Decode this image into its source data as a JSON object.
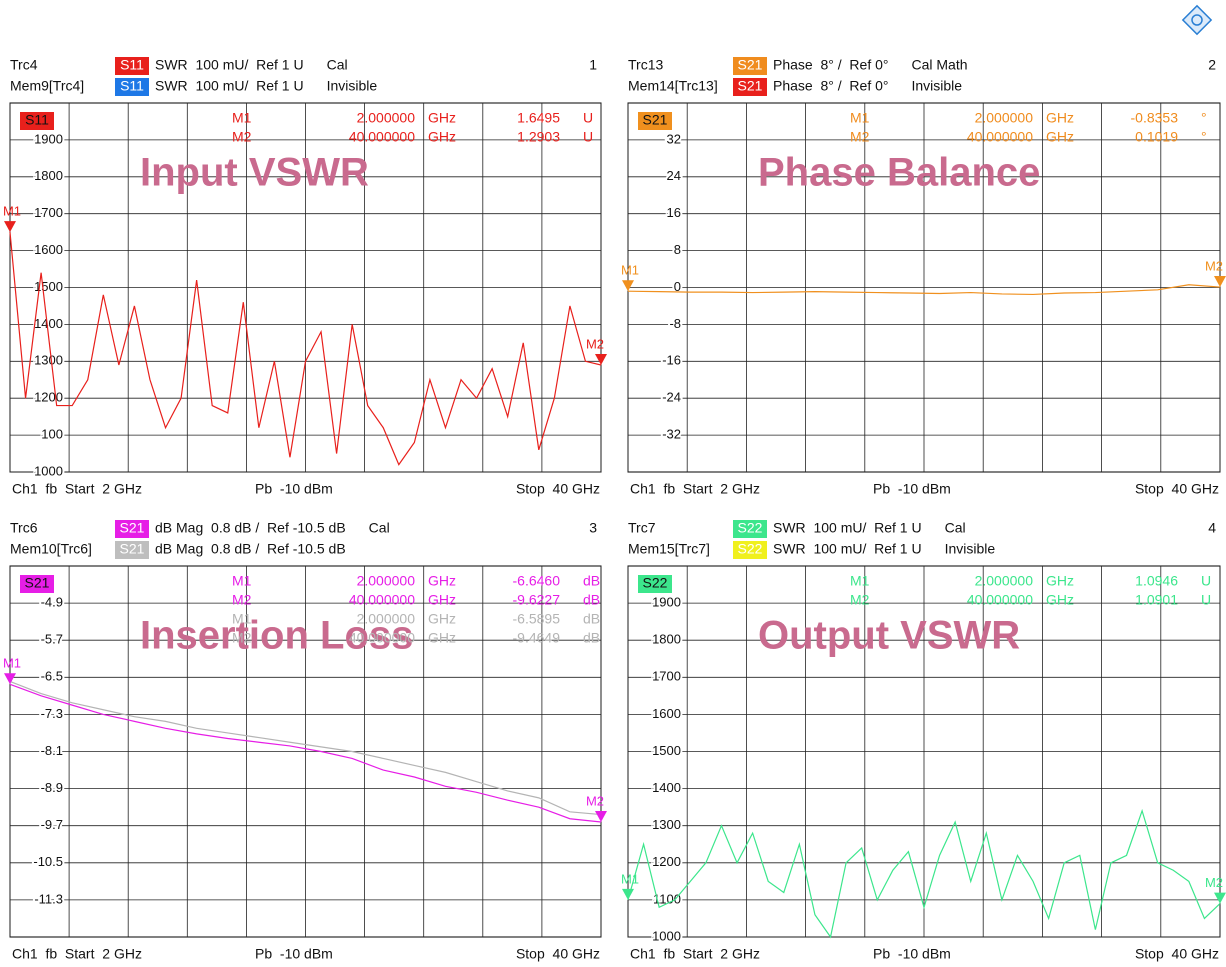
{
  "chart_data": [
    {
      "type": "line",
      "title": "Input VSWR",
      "header": [
        {
          "trace": "Trc4",
          "badge": "S11",
          "badge_color": "#e8201c",
          "format": "SWR  100 mU/  Ref 1 U",
          "status": "Cal",
          "number": "1"
        },
        {
          "trace": "Mem9[Trc4]",
          "badge": "S11",
          "badge_color": "#1e78e6",
          "format": "SWR  100 mU/  Ref 1 U",
          "status": "Invisible"
        }
      ],
      "markers": [
        {
          "name": "M1",
          "stimulus": "2.000000",
          "unit": "GHz",
          "response": "1.6495",
          "response_unit": "U",
          "color": "#e8201c"
        },
        {
          "name": "M2",
          "stimulus": "40.000000",
          "unit": "GHz",
          "response": "1.2903",
          "response_unit": "U",
          "color": "#e8201c"
        }
      ],
      "footer": {
        "start": "Ch1  fb  Start  2 GHz",
        "power": "Pb  -10 dBm",
        "stop": "Stop  40 GHz"
      },
      "x": [
        2,
        3,
        4,
        5,
        6,
        7,
        8,
        9,
        10,
        11,
        12,
        13,
        14,
        15,
        16,
        17,
        18,
        19,
        20,
        21,
        22,
        23,
        24,
        25,
        26,
        27,
        28,
        29,
        30,
        31,
        32,
        33,
        34,
        35,
        36,
        37,
        38,
        39,
        40
      ],
      "xlim": [
        2,
        40
      ],
      "xticks": [
        2,
        5.8,
        9.6,
        13.4,
        17.2,
        21,
        24.8,
        28.6,
        32.4,
        36.2,
        40
      ],
      "ylim": [
        1000,
        2000
      ],
      "yticks": [
        1000,
        {
          "value": 1100,
          "label": "100"
        },
        1200,
        1300,
        1400,
        1500,
        1600,
        1700,
        1800,
        1900
      ],
      "series": [
        {
          "name": "S11",
          "color": "#e8201c",
          "values": [
            1650,
            1200,
            1540,
            1180,
            1180,
            1250,
            1480,
            1290,
            1450,
            1250,
            1120,
            1200,
            1520,
            1180,
            1160,
            1460,
            1120,
            1300,
            1040,
            1300,
            1380,
            1050,
            1400,
            1180,
            1120,
            1020,
            1080,
            1250,
            1120,
            1250,
            1200,
            1280,
            1150,
            1350,
            1060,
            1200,
            1450,
            1300,
            1290
          ]
        }
      ]
    },
    {
      "type": "line",
      "title": "Phase Balance",
      "header": [
        {
          "trace": "Trc13",
          "badge": "S21",
          "badge_color": "#f08c1e",
          "format": "Phase  8° /  Ref 0°",
          "status": "Cal Math",
          "number": "2"
        },
        {
          "trace": "Mem14[Trc13]",
          "badge": "S21",
          "badge_color": "#e8201c",
          "format": "Phase  8° /  Ref 0°",
          "status": "Invisible"
        }
      ],
      "markers": [
        {
          "name": "M1",
          "stimulus": "2.000000",
          "unit": "GHz",
          "response": "-0.8353",
          "response_unit": "°",
          "color": "#f08c1e"
        },
        {
          "name": "M2",
          "stimulus": "40.000000",
          "unit": "GHz",
          "response": "0.1019",
          "response_unit": "°",
          "color": "#f08c1e"
        }
      ],
      "footer": {
        "start": "Ch1  fb  Start  2 GHz",
        "power": "Pb  -10 dBm",
        "stop": "Stop  40 GHz"
      },
      "x": [
        2,
        4,
        6,
        8,
        10,
        12,
        14,
        16,
        18,
        20,
        22,
        24,
        26,
        28,
        30,
        32,
        34,
        36,
        38,
        40
      ],
      "xlim": [
        2,
        40
      ],
      "xticks": [
        2,
        5.8,
        9.6,
        13.4,
        17.2,
        21,
        24.8,
        28.6,
        32.4,
        36.2,
        40
      ],
      "ylim": [
        -40,
        40
      ],
      "yticks": [
        -32,
        -24,
        -16,
        -8,
        0,
        8,
        16,
        24,
        32
      ],
      "series": [
        {
          "name": "S21",
          "color": "#f0901e",
          "values": [
            -0.8,
            -0.9,
            -1.0,
            -1.0,
            -1.1,
            -1.0,
            -0.9,
            -1.0,
            -1.1,
            -1.2,
            -1.3,
            -1.1,
            -1.4,
            -1.5,
            -1.2,
            -1.1,
            -0.8,
            -0.5,
            0.6,
            0.1
          ]
        }
      ]
    },
    {
      "type": "line",
      "title": "Insertion Loss",
      "header": [
        {
          "trace": "Trc6",
          "badge": "S21",
          "badge_color": "#e61ee6",
          "format": "dB Mag  0.8 dB /  Ref -10.5 dB",
          "status": "Cal",
          "number": "3"
        },
        {
          "trace": "Mem10[Trc6]",
          "badge": "S21",
          "badge_color": "#bebebe",
          "format": "dB Mag  0.8 dB /  Ref -10.5 dB"
        }
      ],
      "markers": [
        {
          "name": "M1",
          "stimulus": "2.000000",
          "unit": "GHz",
          "response": "-6.6460",
          "response_unit": "dB",
          "color": "#e61ee6"
        },
        {
          "name": "M2",
          "stimulus": "40.000000",
          "unit": "GHz",
          "response": "-9.6227",
          "response_unit": "dB",
          "color": "#e61ee6"
        },
        {
          "name": "M1",
          "stimulus": "2.000000",
          "unit": "GHz",
          "response": "-6.5895",
          "response_unit": "dB",
          "color": "#b4b4b4"
        },
        {
          "name": "M2",
          "stimulus": "40.000000",
          "unit": "GHz",
          "response": "-9.4649",
          "response_unit": "dB",
          "color": "#b4b4b4"
        }
      ],
      "footer": {
        "start": "Ch1  fb  Start  2 GHz",
        "power": "Pb  -10 dBm",
        "stop": "Stop  40 GHz"
      },
      "x": [
        2,
        4,
        6,
        8,
        10,
        12,
        14,
        16,
        18,
        20,
        22,
        24,
        26,
        28,
        30,
        32,
        34,
        36,
        38,
        40
      ],
      "xlim": [
        2,
        40
      ],
      "xticks": [
        2,
        5.8,
        9.6,
        13.4,
        17.2,
        21,
        24.8,
        28.6,
        32.4,
        36.2,
        40
      ],
      "ylim": [
        -12.1,
        -4.1
      ],
      "yticks": [
        -11.3,
        -10.5,
        -9.7,
        -8.9,
        -8.1,
        -7.3,
        -6.5,
        -5.7,
        -4.9
      ],
      "series": [
        {
          "name": "S21",
          "color": "#e61ee6",
          "values": [
            -6.65,
            -6.9,
            -7.1,
            -7.3,
            -7.45,
            -7.6,
            -7.72,
            -7.82,
            -7.9,
            -7.98,
            -8.1,
            -8.25,
            -8.5,
            -8.65,
            -8.85,
            -8.98,
            -9.15,
            -9.3,
            -9.55,
            -9.62
          ]
        },
        {
          "name": "S21",
          "color": "#b4b4b4",
          "values": [
            -6.59,
            -6.85,
            -7.05,
            -7.2,
            -7.35,
            -7.45,
            -7.6,
            -7.7,
            -7.8,
            -7.9,
            -8.0,
            -8.1,
            -8.25,
            -8.4,
            -8.55,
            -8.75,
            -8.95,
            -9.1,
            -9.4,
            -9.46
          ]
        }
      ]
    },
    {
      "type": "line",
      "title": "Output VSWR",
      "header": [
        {
          "trace": "Trc7",
          "badge": "S22",
          "badge_color": "#3ce68c",
          "format": "SWR  100 mU/  Ref 1 U",
          "status": "Cal",
          "number": "4"
        },
        {
          "trace": "Mem15[Trc7]",
          "badge": "S22",
          "badge_color": "#f0f01e",
          "format": "SWR  100 mU/  Ref 1 U",
          "status": "Invisible"
        }
      ],
      "markers": [
        {
          "name": "M1",
          "stimulus": "2.000000",
          "unit": "GHz",
          "response": "1.0946",
          "response_unit": "U",
          "color": "#3ce68c"
        },
        {
          "name": "M2",
          "stimulus": "40.000000",
          "unit": "GHz",
          "response": "1.0901",
          "response_unit": "U",
          "color": "#3ce68c"
        }
      ],
      "footer": {
        "start": "Ch1  fb  Start  2 GHz",
        "power": "Pb  -10 dBm",
        "stop": "Stop  40 GHz"
      },
      "x": [
        2,
        3,
        4,
        5,
        6,
        7,
        8,
        9,
        10,
        11,
        12,
        13,
        14,
        15,
        16,
        17,
        18,
        19,
        20,
        21,
        22,
        23,
        24,
        25,
        26,
        27,
        28,
        29,
        30,
        31,
        32,
        33,
        34,
        35,
        36,
        37,
        38,
        39,
        40
      ],
      "xlim": [
        2,
        40
      ],
      "xticks": [
        2,
        5.8,
        9.6,
        13.4,
        17.2,
        21,
        24.8,
        28.6,
        32.4,
        36.2,
        40
      ],
      "ylim": [
        1000,
        2000
      ],
      "yticks": [
        1000,
        1100,
        1200,
        1300,
        1400,
        1500,
        1600,
        1700,
        1800,
        1900
      ],
      "series": [
        {
          "name": "S22",
          "color": "#3ce68c",
          "values": [
            1100,
            1250,
            1080,
            1100,
            1150,
            1200,
            1300,
            1200,
            1280,
            1150,
            1120,
            1250,
            1060,
            1000,
            1200,
            1240,
            1100,
            1180,
            1230,
            1080,
            1220,
            1310,
            1150,
            1280,
            1100,
            1220,
            1150,
            1050,
            1200,
            1220,
            1020,
            1200,
            1220,
            1340,
            1200,
            1180,
            1150,
            1050,
            1090
          ]
        }
      ]
    }
  ]
}
